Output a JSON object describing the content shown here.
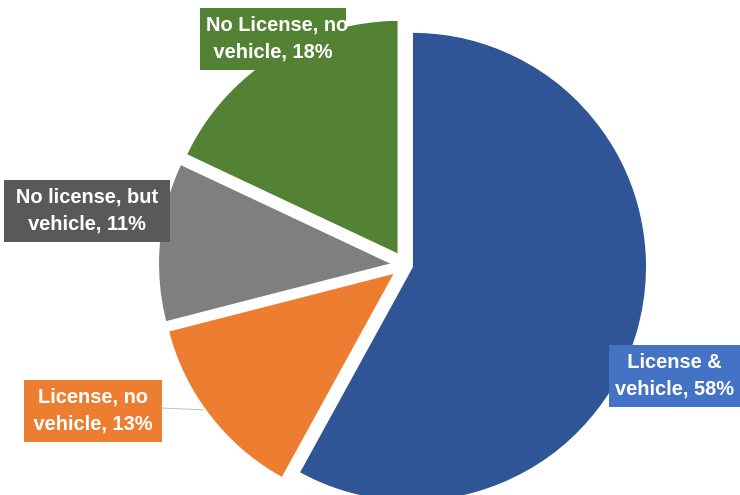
{
  "chart_data": {
    "type": "pie",
    "title": "",
    "slices": [
      {
        "name": "License & vehicle",
        "value": 58,
        "label_line1": "License &",
        "label_line2": "vehicle, 58%",
        "color": "#2F5597",
        "label_bg": "#4472C4"
      },
      {
        "name": "License, no vehicle",
        "value": 13,
        "label_line1": "License, no",
        "label_line2": "vehicle, 13%",
        "color": "#ED7D31",
        "label_bg": "#ED7D31"
      },
      {
        "name": "No license, but vehicle",
        "value": 11,
        "label_line1": "No license, but",
        "label_line2": "vehicle, 11%",
        "color": "#7F7F7F",
        "label_bg": "#595959"
      },
      {
        "name": "No License, no vehicle",
        "value": 18,
        "label_line1": "No License, no",
        "label_line2": "vehicle, 18%",
        "color": "#548235",
        "label_bg": "#548235"
      }
    ],
    "legend": "none",
    "exploded": true
  }
}
